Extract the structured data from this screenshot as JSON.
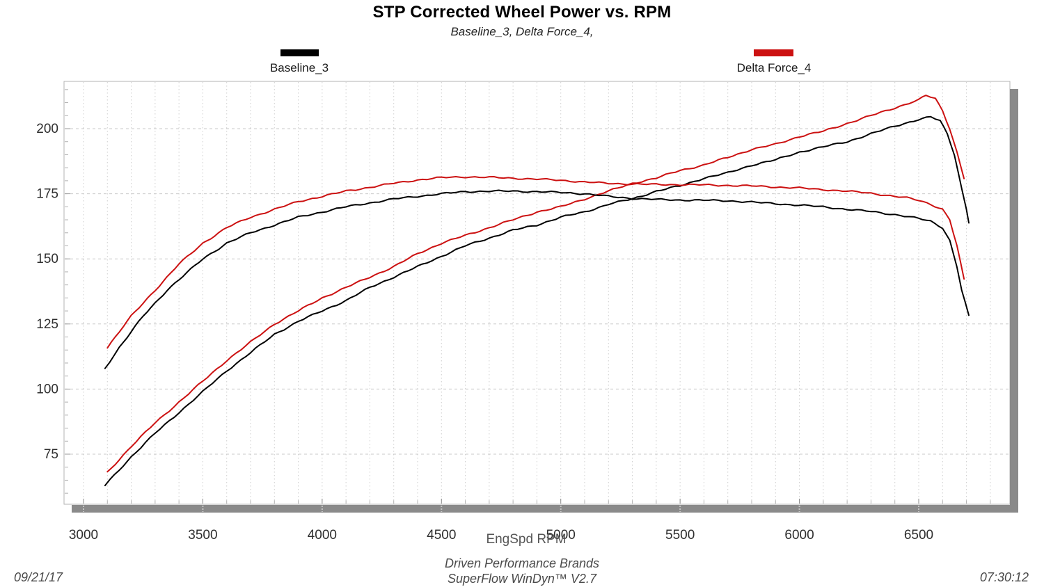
{
  "title": "STP Corrected Wheel Power vs. RPM",
  "subtitle": "Baseline_3, Delta Force_4,",
  "legend": [
    {
      "label": "Baseline_3",
      "color": "#000000"
    },
    {
      "label": "Delta Force_4",
      "color": "#cc1111"
    }
  ],
  "footer": {
    "brand_line": "Driven Performance Brands",
    "software_line": "SuperFlow WinDyn™ V2.7",
    "date": "09/21/17",
    "time": "07:30:12"
  },
  "chart_data": {
    "type": "line",
    "title": "STP Corrected Wheel Power vs. RPM",
    "subtitle": "Baseline_3, Delta Force_4,",
    "xlabel": "EngSpd  RPM",
    "ylabel": "",
    "xlim": [
      2918,
      6882
    ],
    "ylim": [
      56,
      218
    ],
    "x_ticks": [
      3000,
      3500,
      4000,
      4500,
      5000,
      5500,
      6000,
      6500
    ],
    "x_minor_step": 100,
    "y_ticks": [
      75,
      100,
      125,
      150,
      175,
      200
    ],
    "y_minor_step": 5,
    "grid": "dotted vertical every 100 RPM, dashed horizontal every 25",
    "legend_position": "top",
    "series": [
      {
        "name": "Baseline_3 (rising power curve)",
        "run": "Baseline_3",
        "color": "#000000",
        "points": [
          [
            3090,
            63
          ],
          [
            3150,
            69
          ],
          [
            3200,
            74
          ],
          [
            3300,
            83
          ],
          [
            3400,
            91
          ],
          [
            3500,
            99
          ],
          [
            3600,
            107
          ],
          [
            3700,
            114
          ],
          [
            3800,
            121
          ],
          [
            3900,
            126
          ],
          [
            4000,
            130
          ],
          [
            4100,
            134
          ],
          [
            4200,
            139
          ],
          [
            4300,
            143
          ],
          [
            4400,
            147
          ],
          [
            4500,
            151
          ],
          [
            4600,
            155
          ],
          [
            4700,
            158
          ],
          [
            4800,
            161
          ],
          [
            4900,
            163
          ],
          [
            5000,
            166
          ],
          [
            5100,
            168
          ],
          [
            5200,
            171
          ],
          [
            5300,
            173
          ],
          [
            5400,
            176
          ],
          [
            5500,
            178
          ],
          [
            5600,
            181
          ],
          [
            5700,
            183
          ],
          [
            5800,
            186
          ],
          [
            5900,
            188
          ],
          [
            6000,
            191
          ],
          [
            6100,
            193
          ],
          [
            6200,
            195
          ],
          [
            6300,
            198
          ],
          [
            6400,
            201
          ],
          [
            6500,
            203.5
          ],
          [
            6550,
            204.5
          ],
          [
            6590,
            203
          ],
          [
            6620,
            198
          ],
          [
            6650,
            190
          ],
          [
            6680,
            177
          ],
          [
            6700,
            169
          ],
          [
            6710,
            164
          ]
        ]
      },
      {
        "name": "Delta Force_4 (rising power curve)",
        "run": "Delta Force_4",
        "color": "#cc1111",
        "points": [
          [
            3100,
            68
          ],
          [
            3150,
            73
          ],
          [
            3200,
            78
          ],
          [
            3300,
            87
          ],
          [
            3400,
            95
          ],
          [
            3500,
            103
          ],
          [
            3600,
            111
          ],
          [
            3700,
            118
          ],
          [
            3800,
            125
          ],
          [
            3900,
            130
          ],
          [
            4000,
            135
          ],
          [
            4100,
            139
          ],
          [
            4200,
            143
          ],
          [
            4300,
            147
          ],
          [
            4400,
            152
          ],
          [
            4500,
            156
          ],
          [
            4600,
            159
          ],
          [
            4700,
            162
          ],
          [
            4800,
            165
          ],
          [
            4900,
            168
          ],
          [
            5000,
            170
          ],
          [
            5100,
            173
          ],
          [
            5200,
            176
          ],
          [
            5300,
            179
          ],
          [
            5400,
            181
          ],
          [
            5500,
            184
          ],
          [
            5600,
            186
          ],
          [
            5700,
            189
          ],
          [
            5800,
            192
          ],
          [
            5900,
            194
          ],
          [
            6000,
            197
          ],
          [
            6100,
            199
          ],
          [
            6200,
            202
          ],
          [
            6300,
            205
          ],
          [
            6400,
            208
          ],
          [
            6500,
            211
          ],
          [
            6530,
            212.8
          ],
          [
            6570,
            211.5
          ],
          [
            6600,
            207
          ],
          [
            6630,
            200
          ],
          [
            6660,
            191
          ],
          [
            6690,
            181
          ]
        ]
      },
      {
        "name": "Baseline_3 (plateau curve)",
        "run": "Baseline_3",
        "color": "#000000",
        "points": [
          [
            3090,
            108
          ],
          [
            3150,
            116
          ],
          [
            3200,
            122
          ],
          [
            3250,
            128
          ],
          [
            3300,
            133
          ],
          [
            3350,
            138
          ],
          [
            3400,
            142
          ],
          [
            3450,
            146
          ],
          [
            3500,
            150
          ],
          [
            3550,
            153
          ],
          [
            3600,
            156
          ],
          [
            3700,
            160
          ],
          [
            3800,
            163
          ],
          [
            3900,
            166
          ],
          [
            4000,
            168
          ],
          [
            4100,
            170
          ],
          [
            4200,
            171.5
          ],
          [
            4300,
            173
          ],
          [
            4400,
            174
          ],
          [
            4500,
            175
          ],
          [
            4600,
            175.8
          ],
          [
            4700,
            176
          ],
          [
            4800,
            176
          ],
          [
            4900,
            175.8
          ],
          [
            5000,
            175.5
          ],
          [
            5100,
            175
          ],
          [
            5200,
            174
          ],
          [
            5300,
            173.2
          ],
          [
            5400,
            172.8
          ],
          [
            5500,
            172.6
          ],
          [
            5600,
            172.5
          ],
          [
            5700,
            172.3
          ],
          [
            5800,
            171.8
          ],
          [
            5900,
            171.2
          ],
          [
            6000,
            170.6
          ],
          [
            6100,
            170
          ],
          [
            6200,
            169
          ],
          [
            6300,
            168.2
          ],
          [
            6400,
            167
          ],
          [
            6500,
            165.5
          ],
          [
            6550,
            164.5
          ],
          [
            6600,
            162
          ],
          [
            6630,
            157
          ],
          [
            6660,
            147
          ],
          [
            6680,
            138
          ],
          [
            6710,
            128
          ]
        ]
      },
      {
        "name": "Delta Force_4 (plateau curve)",
        "run": "Delta Force_4",
        "color": "#cc1111",
        "points": [
          [
            3100,
            116
          ],
          [
            3150,
            122
          ],
          [
            3200,
            128
          ],
          [
            3250,
            133
          ],
          [
            3300,
            138
          ],
          [
            3350,
            143
          ],
          [
            3400,
            148
          ],
          [
            3450,
            152
          ],
          [
            3500,
            156
          ],
          [
            3550,
            159
          ],
          [
            3600,
            162
          ],
          [
            3700,
            166
          ],
          [
            3800,
            169
          ],
          [
            3900,
            172
          ],
          [
            4000,
            174
          ],
          [
            4100,
            176
          ],
          [
            4200,
            177.5
          ],
          [
            4300,
            179
          ],
          [
            4400,
            180.3
          ],
          [
            4500,
            181.2
          ],
          [
            4600,
            181.5
          ],
          [
            4700,
            181.3
          ],
          [
            4800,
            181
          ],
          [
            4900,
            180.6
          ],
          [
            5000,
            180.2
          ],
          [
            5100,
            179.5
          ],
          [
            5200,
            179
          ],
          [
            5300,
            178.7
          ],
          [
            5400,
            178.6
          ],
          [
            5500,
            178.5
          ],
          [
            5600,
            178.4
          ],
          [
            5700,
            178.2
          ],
          [
            5800,
            178
          ],
          [
            5900,
            177.6
          ],
          [
            6000,
            177.2
          ],
          [
            6100,
            176.6
          ],
          [
            6200,
            176
          ],
          [
            6300,
            175.2
          ],
          [
            6400,
            174
          ],
          [
            6450,
            173.4
          ],
          [
            6500,
            172.5
          ],
          [
            6550,
            171
          ],
          [
            6600,
            169
          ],
          [
            6630,
            165
          ],
          [
            6660,
            155
          ],
          [
            6690,
            142
          ]
        ]
      }
    ]
  }
}
